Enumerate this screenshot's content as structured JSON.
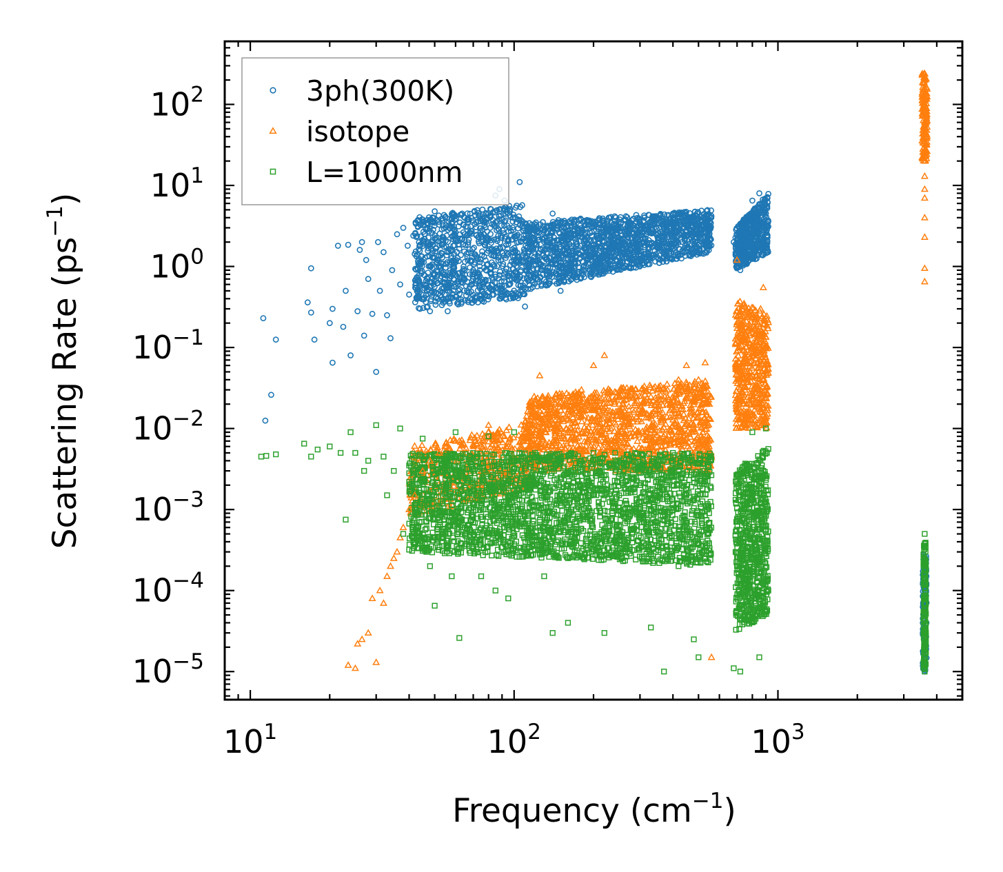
{
  "chart_data": {
    "type": "scatter",
    "title": "",
    "xlabel": "Frequency (cm",
    "xlabel_sup": "−1",
    "xlabel_tail": ")",
    "ylabel": "Scattering Rate (ps",
    "ylabel_sup": "−1",
    "ylabel_tail": ")",
    "xscale": "log",
    "yscale": "log",
    "xlim": [
      8,
      5000
    ],
    "ylim": [
      4.5e-06,
      600
    ],
    "xticks": [
      {
        "value": 10,
        "base": "10",
        "exp": "1"
      },
      {
        "value": 100,
        "base": "10",
        "exp": "2"
      },
      {
        "value": 1000,
        "base": "10",
        "exp": "3"
      }
    ],
    "yticks": [
      {
        "value": 1e-05,
        "base": "10",
        "exp": "−5"
      },
      {
        "value": 0.0001,
        "base": "10",
        "exp": "−4"
      },
      {
        "value": 0.001,
        "base": "10",
        "exp": "−3"
      },
      {
        "value": 0.01,
        "base": "10",
        "exp": "−2"
      },
      {
        "value": 0.1,
        "base": "10",
        "exp": "−1"
      },
      {
        "value": 1,
        "base": "10",
        "exp": "0"
      },
      {
        "value": 10,
        "base": "10",
        "exp": "1"
      },
      {
        "value": 100,
        "base": "10",
        "exp": "2"
      }
    ],
    "legend_position": "top-left",
    "grid": false,
    "series": [
      {
        "name": "3ph(300K)",
        "marker": "circle",
        "color": "#1f77b4",
        "points": [
          [
            11.2,
            0.23
          ],
          [
            11.4,
            0.0125
          ],
          [
            12.0,
            0.026
          ],
          [
            12.5,
            0.125
          ],
          [
            16.5,
            0.36
          ],
          [
            17.0,
            0.95
          ],
          [
            17.0,
            0.27
          ],
          [
            17.5,
            0.125
          ],
          [
            20.0,
            0.2
          ],
          [
            20.5,
            0.3
          ],
          [
            20.5,
            0.065
          ],
          [
            21.5,
            1.8
          ],
          [
            22.5,
            0.18
          ],
          [
            23.0,
            0.5
          ],
          [
            23.5,
            1.85
          ],
          [
            24.0,
            0.08
          ],
          [
            25.5,
            0.28
          ],
          [
            26.0,
            1.6
          ],
          [
            26.5,
            2.0
          ],
          [
            27.0,
            0.14
          ],
          [
            27.5,
            1.2
          ],
          [
            28.0,
            0.7
          ],
          [
            29.0,
            0.26
          ],
          [
            30.0,
            0.05
          ],
          [
            30.5,
            2.0
          ],
          [
            31.0,
            0.5
          ],
          [
            32.0,
            1.5
          ],
          [
            33.0,
            0.25
          ],
          [
            34.0,
            0.13
          ],
          [
            34.5,
            0.9
          ],
          [
            36.0,
            2.5
          ],
          [
            37.0,
            0.6
          ],
          [
            38.0,
            3.0
          ],
          [
            39.5,
            1.8
          ],
          [
            40.0,
            0.45
          ],
          [
            41.5,
            2.4
          ],
          [
            43.0,
            1.4
          ],
          [
            44.0,
            0.3
          ],
          [
            45.0,
            3.5
          ],
          [
            46.0,
            0.6
          ],
          [
            47.0,
            2.0
          ],
          [
            48.0,
            0.28
          ],
          [
            50.0,
            4.8
          ],
          [
            52.0,
            1.0
          ],
          [
            54.0,
            0.4
          ],
          [
            56.0,
            0.28
          ],
          [
            58.0,
            3.5
          ],
          [
            60.0,
            2.2
          ],
          [
            65.0,
            0.38
          ],
          [
            70.0,
            0.9
          ],
          [
            75.0,
            0.4
          ],
          [
            80.0,
            4.5
          ],
          [
            85.0,
            7.5
          ],
          [
            88.0,
            9.0
          ],
          [
            92.0,
            6.5
          ],
          [
            100.0,
            1.2
          ],
          [
            105.0,
            11.0
          ],
          [
            110.0,
            0.32
          ],
          [
            120.0,
            0.8
          ],
          [
            130.0,
            2.0
          ],
          [
            140.0,
            4.5
          ],
          [
            150.0,
            0.5
          ],
          [
            170.0,
            2.5
          ],
          [
            200.0,
            3.5
          ],
          [
            230.0,
            1.5
          ],
          [
            260.0,
            2.0
          ],
          [
            300.0,
            3.5
          ],
          [
            350.0,
            2.0
          ],
          [
            400.0,
            4.5
          ],
          [
            450.0,
            2.8
          ],
          [
            500.0,
            3.2
          ],
          [
            540.0,
            3.5
          ],
          [
            680.0,
            2.0
          ],
          [
            720.0,
            0.9
          ],
          [
            760.0,
            1.4
          ],
          [
            800.0,
            6.5
          ],
          [
            850.0,
            8.0
          ],
          [
            900.0,
            3.0
          ],
          [
            3600.0,
            1e-05
          ]
        ]
      },
      {
        "name": "isotope",
        "marker": "triangle",
        "color": "#ff7f0e",
        "points": [
          [
            23.5,
            1.2e-05
          ],
          [
            25.0,
            1.1e-05
          ],
          [
            25.5,
            2.2e-05
          ],
          [
            26.5,
            2.5e-05
          ],
          [
            28.0,
            3e-05
          ],
          [
            29.0,
            8e-05
          ],
          [
            30.0,
            1.3e-05
          ],
          [
            31.0,
            0.0001
          ],
          [
            32.0,
            7e-05
          ],
          [
            33.0,
            0.00015
          ],
          [
            34.0,
            0.0002
          ],
          [
            35.0,
            0.00025
          ],
          [
            36.0,
            0.0003
          ],
          [
            37.0,
            0.00045
          ],
          [
            38.0,
            0.0006
          ],
          [
            40.0,
            0.001
          ],
          [
            42.0,
            0.0015
          ],
          [
            45.0,
            0.003
          ],
          [
            48.0,
            0.004
          ],
          [
            52.0,
            0.005
          ],
          [
            55.0,
            0.0065
          ],
          [
            60.0,
            0.007
          ],
          [
            70.0,
            0.006
          ],
          [
            80.0,
            0.011
          ],
          [
            95.0,
            0.006
          ],
          [
            110.0,
            0.012
          ],
          [
            120.0,
            0.02
          ],
          [
            125.0,
            0.045
          ],
          [
            135.0,
            0.015
          ],
          [
            150.0,
            0.025
          ],
          [
            160.0,
            0.022
          ],
          [
            180.0,
            0.03
          ],
          [
            200.0,
            0.06
          ],
          [
            220.0,
            0.08
          ],
          [
            250.0,
            0.025
          ],
          [
            280.0,
            0.03
          ],
          [
            300.0,
            0.015
          ],
          [
            330.0,
            0.0065
          ],
          [
            350.0,
            0.03
          ],
          [
            380.0,
            0.02
          ],
          [
            420.0,
            0.04
          ],
          [
            450.0,
            0.06
          ],
          [
            500.0,
            0.04
          ],
          [
            530.0,
            0.065
          ],
          [
            550.0,
            0.02
          ],
          [
            560.0,
            1.5e-05
          ],
          [
            700.0,
            1.2
          ],
          [
            710.0,
            0.1
          ],
          [
            720.0,
            0.04
          ],
          [
            750.0,
            0.08
          ],
          [
            780.0,
            0.25
          ],
          [
            820.0,
            0.15
          ],
          [
            860.0,
            0.3
          ],
          [
            880.0,
            0.55
          ],
          [
            900.0,
            0.1
          ],
          [
            3600.0,
            0.65
          ],
          [
            3600.0,
            0.95
          ],
          [
            3600.0,
            2.3
          ],
          [
            3600.0,
            4.0
          ],
          [
            3600.0,
            7.0
          ],
          [
            3600.0,
            9.0
          ],
          [
            3600.0,
            13.0
          ],
          [
            3600.0,
            20.0
          ],
          [
            3600.0,
            35.0
          ],
          [
            3600.0,
            60.0
          ],
          [
            3600.0,
            100.0
          ],
          [
            3600.0,
            160.0
          ],
          [
            3600.0,
            240.0
          ]
        ]
      },
      {
        "name": "L=1000nm",
        "marker": "square",
        "color": "#2ca02c",
        "points": [
          [
            11.0,
            0.0045
          ],
          [
            11.5,
            0.0046
          ],
          [
            12.5,
            0.0048
          ],
          [
            16.0,
            0.0065
          ],
          [
            17.0,
            0.0045
          ],
          [
            18.0,
            0.0055
          ],
          [
            20.0,
            0.006
          ],
          [
            22.0,
            0.005
          ],
          [
            23.0,
            0.00075
          ],
          [
            24.0,
            0.009
          ],
          [
            25.0,
            0.005
          ],
          [
            27.0,
            0.003
          ],
          [
            28.0,
            0.004
          ],
          [
            30.0,
            0.011
          ],
          [
            32.0,
            0.0045
          ],
          [
            33.0,
            0.0015
          ],
          [
            35.0,
            0.003
          ],
          [
            37.0,
            0.01
          ],
          [
            38.0,
            0.0005
          ],
          [
            40.0,
            0.0035
          ],
          [
            42.0,
            0.001
          ],
          [
            45.0,
            0.0075
          ],
          [
            48.0,
            0.0002
          ],
          [
            50.0,
            6.5e-05
          ],
          [
            55.0,
            0.004
          ],
          [
            58.0,
            0.00015
          ],
          [
            60.0,
            0.009
          ],
          [
            62.0,
            2.6e-05
          ],
          [
            65.0,
            0.0006
          ],
          [
            70.0,
            0.003
          ],
          [
            75.0,
            0.00015
          ],
          [
            80.0,
            0.008
          ],
          [
            85.0,
            0.0001
          ],
          [
            90.0,
            0.002
          ],
          [
            95.0,
            8e-05
          ],
          [
            100.0,
            0.009
          ],
          [
            110.0,
            0.0003
          ],
          [
            120.0,
            0.005
          ],
          [
            130.0,
            0.00015
          ],
          [
            140.0,
            3e-05
          ],
          [
            150.0,
            0.0025
          ],
          [
            160.0,
            4e-05
          ],
          [
            180.0,
            0.001
          ],
          [
            200.0,
            0.005
          ],
          [
            220.0,
            3e-05
          ],
          [
            250.0,
            0.0015
          ],
          [
            280.0,
            0.0005
          ],
          [
            300.0,
            0.002
          ],
          [
            330.0,
            3.5e-05
          ],
          [
            350.0,
            0.003
          ],
          [
            370.0,
            1e-05
          ],
          [
            400.0,
            0.005
          ],
          [
            420.0,
            0.0002
          ],
          [
            450.0,
            0.0015
          ],
          [
            480.0,
            2.5e-05
          ],
          [
            500.0,
            1.5e-05
          ],
          [
            520.0,
            0.003
          ],
          [
            540.0,
            0.001
          ],
          [
            680.0,
            1.1e-05
          ],
          [
            700.0,
            0.0002
          ],
          [
            720.0,
            1e-05
          ],
          [
            740.0,
            0.0005
          ],
          [
            760.0,
            0.001
          ],
          [
            780.0,
            0.002
          ],
          [
            800.0,
            0.009
          ],
          [
            820.0,
            5e-05
          ],
          [
            850.0,
            1.5e-05
          ],
          [
            880.0,
            0.003
          ],
          [
            900.0,
            0.01
          ],
          [
            920.0,
            0.0001
          ],
          [
            3600.0,
            1e-05
          ],
          [
            3600.0,
            0.0005
          ]
        ]
      }
    ]
  }
}
